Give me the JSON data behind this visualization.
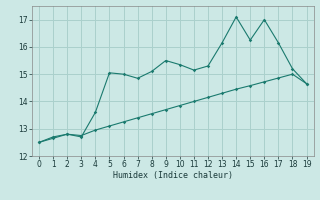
{
  "xlabel": "Humidex (Indice chaleur)",
  "bg_color": "#cce8e5",
  "grid_color": "#aad0cc",
  "line_color": "#1a7a6e",
  "x_main": [
    0,
    1,
    2,
    3,
    4,
    5,
    6,
    7,
    8,
    9,
    10,
    11,
    12,
    13,
    14,
    15,
    16,
    17,
    18,
    19
  ],
  "y_main": [
    12.5,
    12.7,
    12.8,
    12.7,
    13.6,
    15.05,
    15.0,
    14.85,
    15.1,
    15.5,
    15.35,
    15.15,
    15.3,
    16.15,
    17.1,
    16.25,
    17.0,
    16.15,
    15.2,
    14.65
  ],
  "y_linear": [
    12.5,
    12.65,
    12.8,
    12.75,
    12.95,
    13.1,
    13.25,
    13.4,
    13.55,
    13.7,
    13.85,
    14.0,
    14.15,
    14.3,
    14.45,
    14.58,
    14.72,
    14.86,
    15.0,
    14.65
  ],
  "xlim": [
    -0.5,
    19.5
  ],
  "ylim": [
    12.0,
    17.5
  ],
  "yticks": [
    12,
    13,
    14,
    15,
    16,
    17
  ],
  "xticks": [
    0,
    1,
    2,
    3,
    4,
    5,
    6,
    7,
    8,
    9,
    10,
    11,
    12,
    13,
    14,
    15,
    16,
    17,
    18,
    19
  ],
  "tick_fontsize": 5.5,
  "xlabel_fontsize": 6.0
}
